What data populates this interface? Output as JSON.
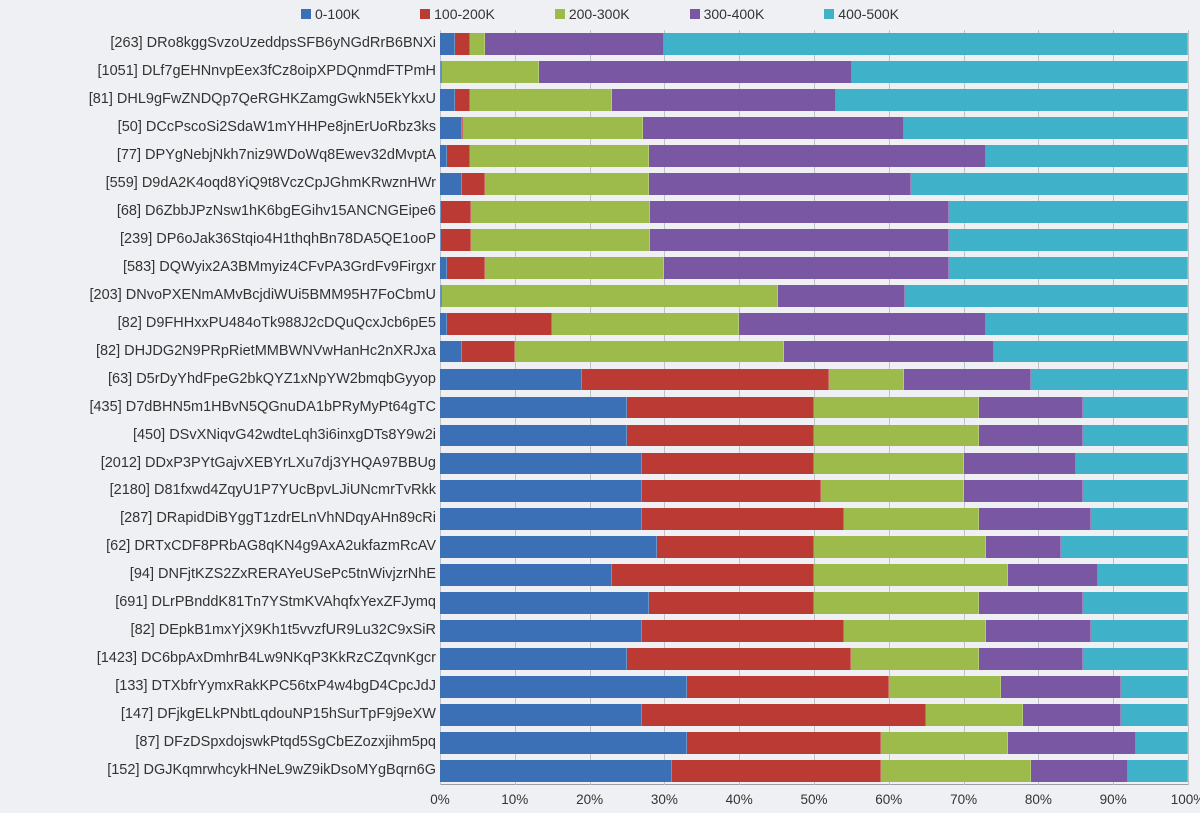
{
  "chart": {
    "type": "stacked-bar-horizontal-100pct",
    "background_color": "#eef0f3",
    "grid_color": "#bfc3c8",
    "label_fontsize": 14.5,
    "tick_fontsize": 13.5,
    "legend_fontsize": 14,
    "xlim": [
      0,
      100
    ],
    "xtick_step": 10,
    "xticks": [
      "0%",
      "10%",
      "20%",
      "30%",
      "40%",
      "50%",
      "60%",
      "70%",
      "80%",
      "90%",
      "100%"
    ],
    "series": [
      {
        "key": "s0",
        "label": "0-100K",
        "color": "#3b6fb6"
      },
      {
        "key": "s1",
        "label": "100-200K",
        "color": "#bb3a33"
      },
      {
        "key": "s2",
        "label": "200-300K",
        "color": "#9cbb4a"
      },
      {
        "key": "s3",
        "label": "300-400K",
        "color": "#7a57a3"
      },
      {
        "key": "s4",
        "label": "400-500K",
        "color": "#3fb1c9"
      }
    ],
    "rows": [
      {
        "label": "[263] DRo8kggSvzoUzeddpsSFB6yNGdRrB6BNXi",
        "v": [
          2,
          2,
          2,
          24,
          70
        ]
      },
      {
        "label": "[1051] DLf7gEHNnvpEex3fCz8oipXPDQnmdFTPmH",
        "v": [
          0,
          0,
          13,
          42,
          45
        ]
      },
      {
        "label": "[81] DHL9gFwZNDQp7QeRGHKZamgGwkN5EkYkxU",
        "v": [
          2,
          2,
          19,
          30,
          47
        ]
      },
      {
        "label": "[50] DCcPscoSi2SdaW1mYHHPe8jnErUoRbz3ks",
        "v": [
          3,
          0,
          24,
          35,
          38
        ]
      },
      {
        "label": "[77] DPYgNebjNkh7niz9WDoWq8Ewev32dMvptA",
        "v": [
          1,
          3,
          24,
          45,
          27
        ]
      },
      {
        "label": "[559] D9dA2K4oqd8YiQ9t8VczCpJGhmKRwznHWr",
        "v": [
          3,
          3,
          22,
          35,
          37
        ]
      },
      {
        "label": "[68] D6ZbbJPzNsw1hK6bgEGihv15ANCNGEipe6",
        "v": [
          0,
          4,
          24,
          40,
          32
        ]
      },
      {
        "label": "[239] DP6oJak36Stqio4H1thqhBn78DA5QE1ooP",
        "v": [
          0,
          4,
          24,
          40,
          32
        ]
      },
      {
        "label": "[583] DQWyix2A3BMmyiz4CFvPA3GrdFv9Firgxr",
        "v": [
          1,
          5,
          24,
          38,
          32
        ]
      },
      {
        "label": "[203] DNvoPXENmAMvBcjdiWUi5BMM95H7FoCbmU",
        "v": [
          0,
          0,
          45,
          17,
          38
        ]
      },
      {
        "label": "[82] D9FHHxxPU484oTk988J2cDQuQcxJcb6pE5",
        "v": [
          1,
          14,
          25,
          33,
          27
        ]
      },
      {
        "label": "[82] DHJDG2N9PRpRietMMBWNVwHanHc2nXRJxa",
        "v": [
          3,
          7,
          36,
          28,
          26
        ]
      },
      {
        "label": "[63] D5rDyYhdFpeG2bkQYZ1xNpYW2bmqbGyyop",
        "v": [
          19,
          33,
          10,
          17,
          21
        ]
      },
      {
        "label": "[435] D7dBHN5m1HBvN5QGnuDA1bPRyMyPt64gTC",
        "v": [
          25,
          25,
          22,
          14,
          14
        ]
      },
      {
        "label": "[450] DSvXNiqvG42wdteLqh3i6inxgDTs8Y9w2i",
        "v": [
          25,
          25,
          22,
          14,
          14
        ]
      },
      {
        "label": "[2012] DDxP3PYtGajvXEBYrLXu7dj3YHQA97BBUg",
        "v": [
          27,
          23,
          20,
          15,
          15
        ]
      },
      {
        "label": "[2180] D81fxwd4ZqyU1P7YUcBpvLJiUNcmrTvRkk",
        "v": [
          27,
          24,
          19,
          16,
          14
        ]
      },
      {
        "label": "[287] DRapidDiBYggT1zdrELnVhNDqyAHn89cRi",
        "v": [
          27,
          27,
          18,
          15,
          13
        ]
      },
      {
        "label": "[62] DRTxCDF8PRbAG8qKN4g9AxA2ukfazmRcAV",
        "v": [
          29,
          21,
          23,
          10,
          17
        ]
      },
      {
        "label": "[94] DNFjtKZS2ZxRERAYeUSePc5tnWivjzrNhE",
        "v": [
          23,
          27,
          26,
          12,
          12
        ]
      },
      {
        "label": "[691] DLrPBnddK81Tn7YStmKVAhqfxYexZFJymq",
        "v": [
          28,
          22,
          22,
          14,
          14
        ]
      },
      {
        "label": "[82] DEpkB1mxYjX9Kh1t5vvzfUR9Lu32C9xSiR",
        "v": [
          27,
          27,
          19,
          14,
          13
        ]
      },
      {
        "label": "[1423] DC6bpAxDmhrB4Lw9NKqP3KkRzCZqvnKgcr",
        "v": [
          25,
          30,
          17,
          14,
          14
        ]
      },
      {
        "label": "[133] DTXbfrYymxRakKPC56txP4w4bgD4CpcJdJ",
        "v": [
          33,
          27,
          15,
          16,
          9
        ]
      },
      {
        "label": "[147] DFjkgELkPNbtLqdouNP15hSurTpF9j9eXW",
        "v": [
          27,
          38,
          13,
          13,
          9
        ]
      },
      {
        "label": "[87] DFzDSpxdojswkPtqd5SgCbEZozxjihm5pq",
        "v": [
          33,
          26,
          17,
          17,
          7
        ]
      },
      {
        "label": "[152] DGJKqmrwhcykHNeL9wZ9ikDsoMYgBqrn6G",
        "v": [
          31,
          28,
          20,
          13,
          8
        ]
      }
    ]
  }
}
